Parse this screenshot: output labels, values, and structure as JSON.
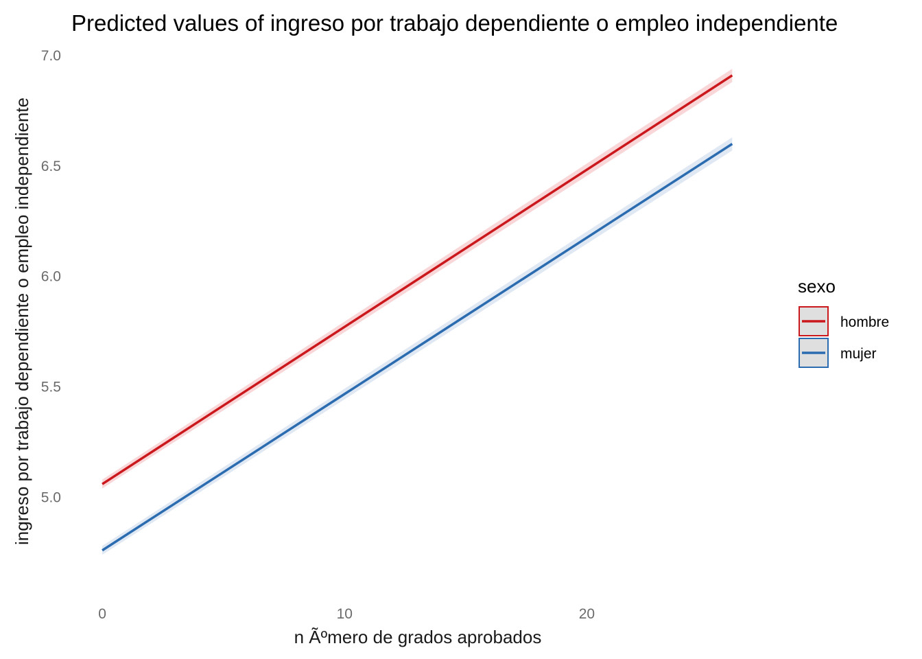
{
  "chart_data": {
    "type": "line",
    "title": "Predicted values of ingreso por trabajo dependiente o empleo independiente",
    "xlabel": "n Ãºmero de grados aprobados",
    "ylabel": "ingreso por trabajo dependiente o empleo independiente",
    "xlim": [
      -0.2,
      26.5
    ],
    "ylim": [
      4.61,
      7.04
    ],
    "x_ticks": [
      0,
      10,
      20
    ],
    "x_tick_labels": [
      "0",
      "10",
      "20"
    ],
    "y_ticks": [
      5.0,
      5.5,
      6.0,
      6.5,
      7.0
    ],
    "y_tick_labels": [
      "5.0",
      "5.5",
      "6.0",
      "6.5",
      "7.0"
    ],
    "grid": false,
    "legend": {
      "title": "sexo",
      "position": "right"
    },
    "series": [
      {
        "name": "hombre",
        "color": "#cb181d",
        "band_color": "#f4b6b9",
        "x": [
          0,
          26
        ],
        "y": [
          5.06,
          6.91
        ],
        "ci_low": [
          5.04,
          6.88
        ],
        "ci_high": [
          5.08,
          6.94
        ]
      },
      {
        "name": "mujer",
        "color": "#2b6cb0",
        "band_color": "#c6d5ea",
        "x": [
          0,
          26
        ],
        "y": [
          4.76,
          6.6
        ],
        "ci_low": [
          4.74,
          6.57
        ],
        "ci_high": [
          4.78,
          6.63
        ]
      }
    ]
  }
}
